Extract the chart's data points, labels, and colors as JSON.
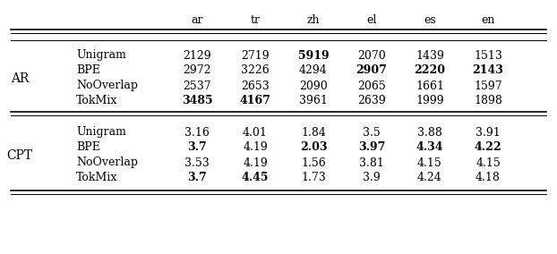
{
  "col_headers": [
    "",
    "",
    "ar",
    "tr",
    "zh",
    "el",
    "es",
    "en"
  ],
  "row_groups": [
    {
      "group_label": "AR",
      "rows": [
        {
          "method": "Unigram",
          "values": [
            "2129",
            "2719",
            "5919",
            "2070",
            "1439",
            "1513"
          ],
          "bold": [
            false,
            false,
            true,
            false,
            false,
            false
          ]
        },
        {
          "method": "BPE",
          "values": [
            "2972",
            "3226",
            "4294",
            "2907",
            "2220",
            "2143"
          ],
          "bold": [
            false,
            false,
            false,
            true,
            true,
            true
          ]
        },
        {
          "method": "NoOverlap",
          "values": [
            "2537",
            "2653",
            "2090",
            "2065",
            "1661",
            "1597"
          ],
          "bold": [
            false,
            false,
            false,
            false,
            false,
            false
          ]
        },
        {
          "method": "TokMix",
          "values": [
            "3485",
            "4167",
            "3961",
            "2639",
            "1999",
            "1898"
          ],
          "bold": [
            true,
            true,
            false,
            false,
            false,
            false
          ]
        }
      ]
    },
    {
      "group_label": "CPT",
      "rows": [
        {
          "method": "Unigram",
          "values": [
            "3.16",
            "4.01",
            "1.84",
            "3.5",
            "3.88",
            "3.91"
          ],
          "bold": [
            false,
            false,
            false,
            false,
            false,
            false
          ]
        },
        {
          "method": "BPE",
          "values": [
            "3.7",
            "4.19",
            "2.03",
            "3.97",
            "4.34",
            "4.22"
          ],
          "bold": [
            true,
            false,
            true,
            true,
            true,
            true
          ]
        },
        {
          "method": "NoOverlap",
          "values": [
            "3.53",
            "4.19",
            "1.56",
            "3.81",
            "4.15",
            "4.15"
          ],
          "bold": [
            false,
            false,
            false,
            false,
            false,
            false
          ]
        },
        {
          "method": "TokMix",
          "values": [
            "3.7",
            "4.45",
            "1.73",
            "3.9",
            "4.24",
            "4.18"
          ],
          "bold": [
            true,
            true,
            false,
            false,
            false,
            false
          ]
        }
      ]
    }
  ],
  "background_color": "#ffffff",
  "text_color": "#000000",
  "font_size": 9.0,
  "col_header_labels": [
    "ar",
    "tr",
    "zh",
    "el",
    "es",
    "en"
  ],
  "group_label_font_size": 10,
  "method_font_size": 9.0
}
